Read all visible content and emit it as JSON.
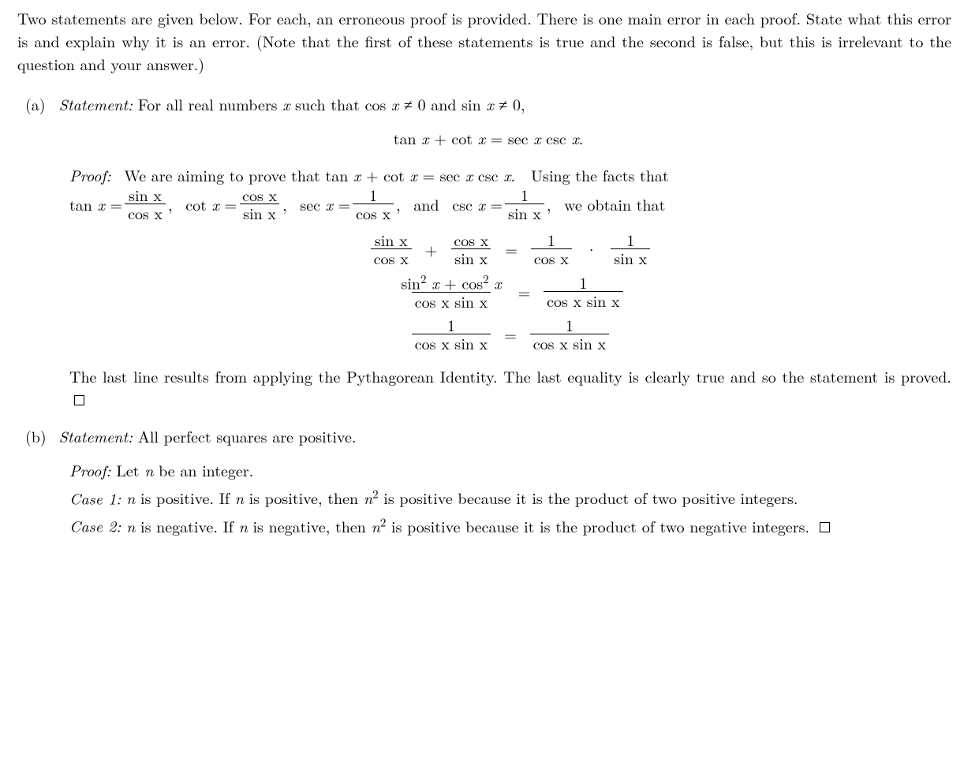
{
  "intro": {
    "bullet": ".",
    "text": "Two statements are given below. For each, an erroneous proof is provided. There is one main error in each proof. State what this error is and explain why it is an error. (Note that the first of these statements is true and the second is false, but this is irrelevant to the question and your answer.)"
  },
  "partA": {
    "label": "(a)",
    "statementLabel": "Statement:",
    "statementText": "For all real numbers x such that cos x ≠ 0 and sin x ≠ 0,",
    "displayEq": "tan x + cot x = sec x csc x.",
    "proofLabel": "Proof:",
    "proofIntro1": "We are aiming to prove that tan x + cot x = sec x csc x.  Using the facts that",
    "proofIntro2a": "tan x =",
    "proofIntro2b": ",  cot x =",
    "proofIntro2c": ",  sec x =",
    "proofIntro2d": ",  and  csc x =",
    "proofIntro2e": ",  we obtain that",
    "frac1n": "sin x",
    "frac1d": "cos x",
    "frac2n": "cos x",
    "frac2d": "sin x",
    "frac3n": "1",
    "frac3d": "cos x",
    "frac4n": "1",
    "frac4d": "sin x",
    "row2_lhs_n": "sin² x + cos² x",
    "row2_lhs_d": "cos x sin x",
    "row2_rhs_n": "1",
    "row2_rhs_d": "cos x sin x",
    "row3_lhs_n": "1",
    "row3_lhs_d": "cos x sin x",
    "row3_rhs_n": "1",
    "row3_rhs_d": "cos x sin x",
    "conclusion": "The last line results from applying the Pythagorean Identity. The last equality is clearly true and so the statement is proved."
  },
  "partB": {
    "label": "(b)",
    "statementLabel": "Statement:",
    "statementText": "All perfect squares are positive.",
    "proofLabel": "Proof:",
    "proofLine": "Let n be an integer.",
    "case1Label": "Case 1:",
    "case1Text": "n is positive. If n is positive, then n² is positive because it is the product of two positive integers.",
    "case2Label": "Case 2:",
    "case2Text": "n is negative. If n is negative, then n² is positive because it is the product of two negative integers."
  },
  "style": {
    "text_color": "#000000",
    "background_color": "#ffffff",
    "body_fontsize": 20,
    "font_family": "Latin Modern Roman / Computer Modern (serif)"
  }
}
